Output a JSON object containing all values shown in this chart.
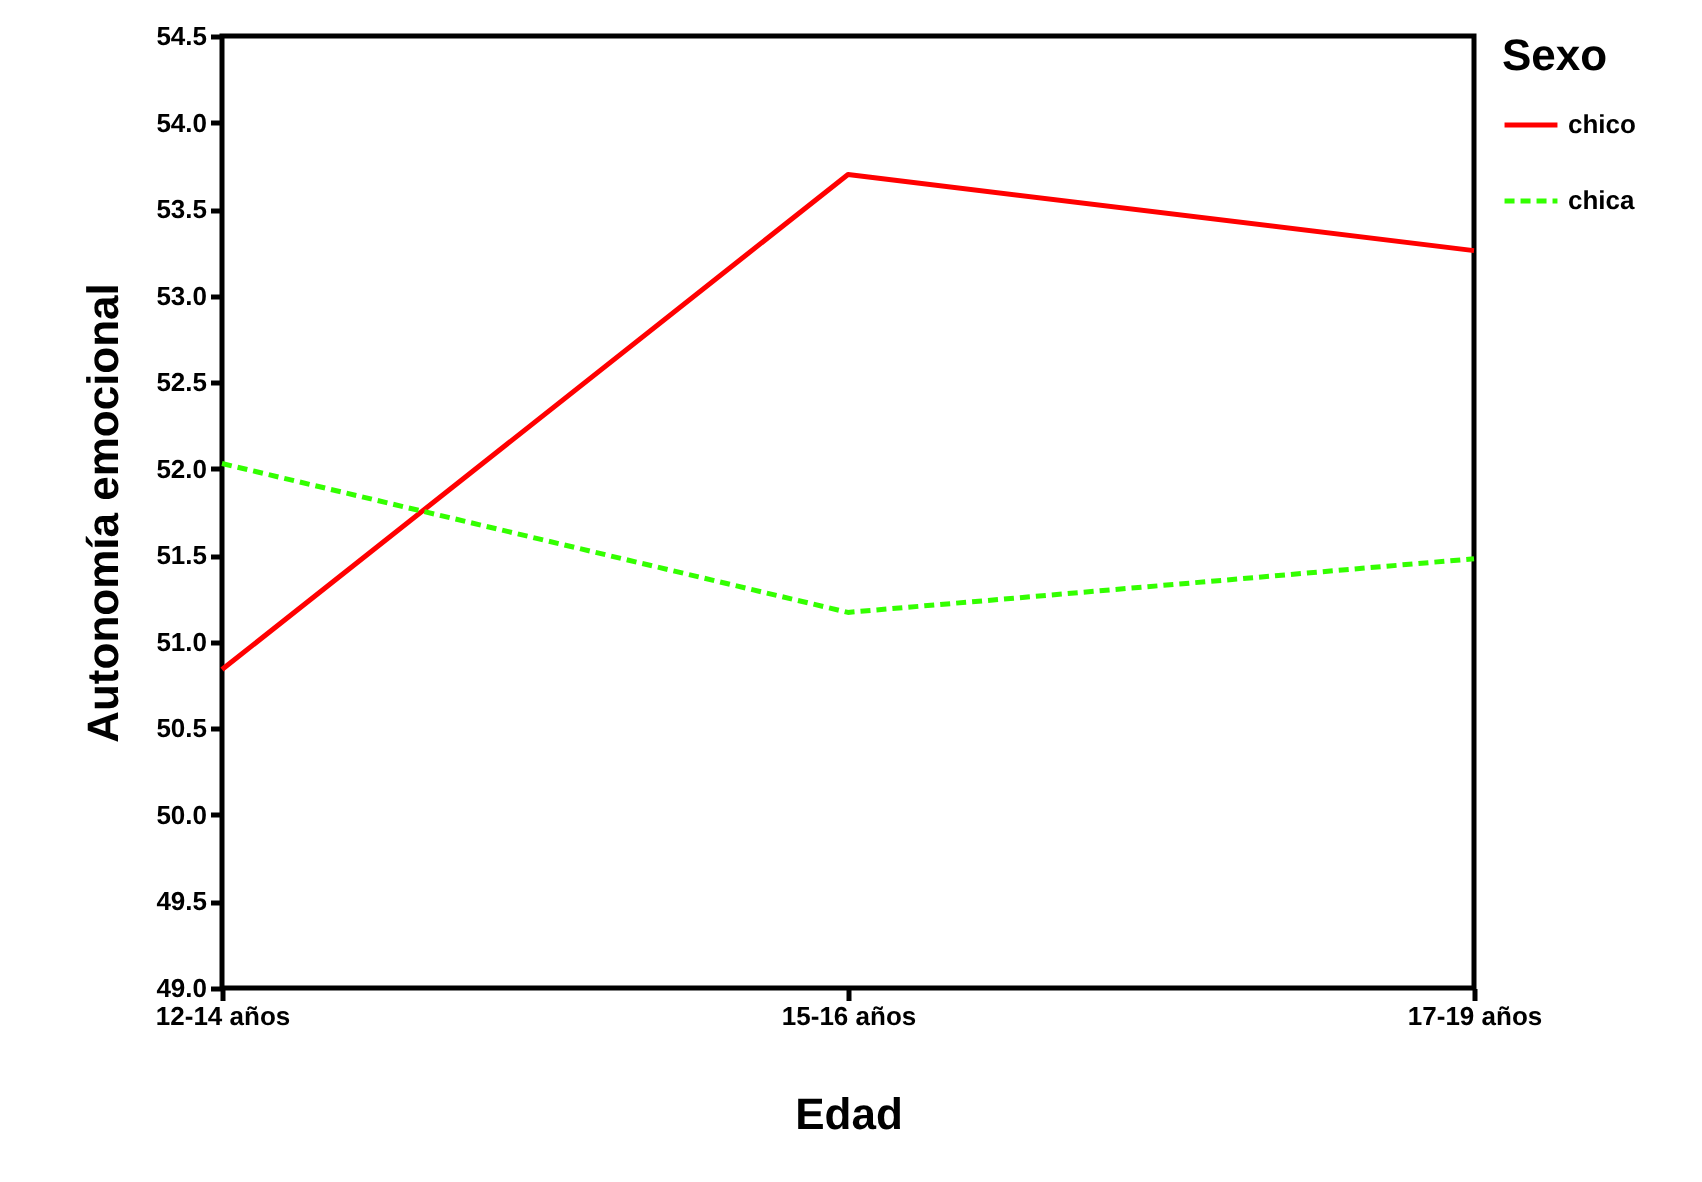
{
  "chart_data": {
    "type": "line",
    "xlabel": "Edad",
    "ylabel": "Autonomía emocional",
    "legend_title": "Sexo",
    "legend": "right",
    "grid": false,
    "categories": [
      "12-14 años",
      "15-16 años",
      "17-19 años"
    ],
    "series": [
      {
        "name": "chico",
        "color": "#ff0000",
        "line_style": "solid",
        "values": [
          50.84,
          53.7,
          53.26
        ]
      },
      {
        "name": "chica",
        "color": "#33ff00",
        "line_style": "dashed",
        "values": [
          52.03,
          51.17,
          51.48
        ]
      }
    ],
    "ylim": [
      49,
      54.5
    ],
    "yticks": [
      {
        "value": 49,
        "label": "49.0"
      },
      {
        "value": 49.5,
        "label": "49.5"
      },
      {
        "value": 50,
        "label": "50.0"
      },
      {
        "value": 50.5,
        "label": "50.5"
      },
      {
        "value": 51,
        "label": "51.0"
      },
      {
        "value": 51.5,
        "label": "51.5"
      },
      {
        "value": 52,
        "label": "52.0"
      },
      {
        "value": 52.5,
        "label": "52.5"
      },
      {
        "value": 53,
        "label": "53.0"
      },
      {
        "value": 53.5,
        "label": "53.5"
      },
      {
        "value": 54,
        "label": "54.0"
      },
      {
        "value": 54.5,
        "label": "54.5"
      }
    ]
  }
}
